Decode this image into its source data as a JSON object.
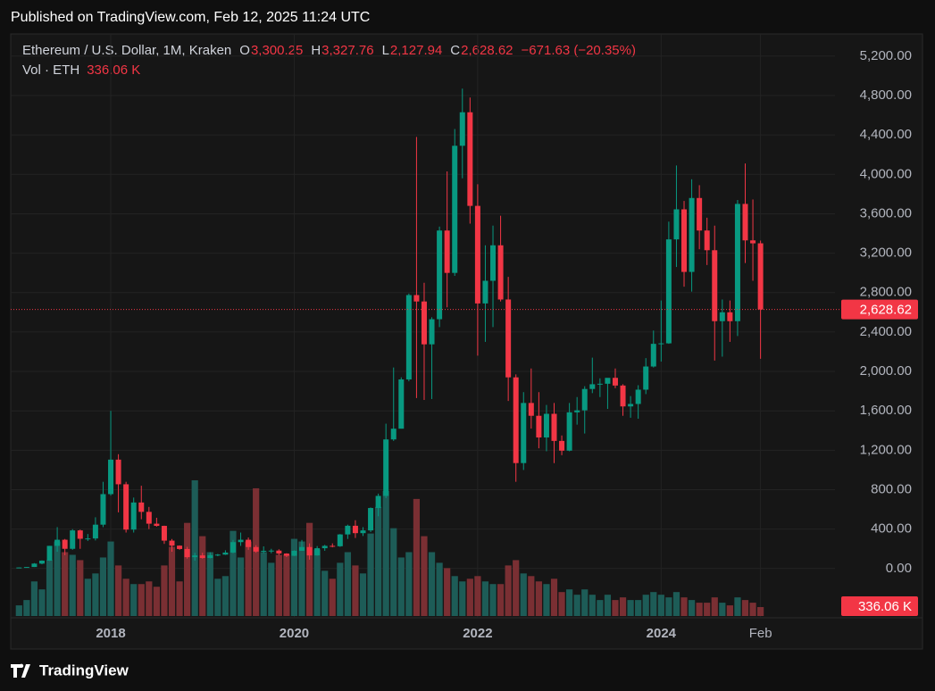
{
  "header": {
    "published": "Published on TradingView.com, Feb 12, 2025 11:24 UTC"
  },
  "footer": {
    "brand": "TradingView"
  },
  "chart_data": {
    "type": "candlestick",
    "legend": {
      "symbol": "Ethereum / U.S. Dollar, 1M, Kraken",
      "o_key": "O",
      "open": "3,300.25",
      "h_key": "H",
      "high": "3,327.76",
      "l_key": "L",
      "low": "2,127.94",
      "c_key": "C",
      "close": "2,628.62",
      "change": "−671.63 (−20.35%)",
      "volume_name": "Vol · ETH",
      "volume": "336.06 K"
    },
    "up_color": "#089981",
    "down_color": "#f23645",
    "volume_up_color": "#1d5c57",
    "volume_down_color": "#7a2f33",
    "ylim": [
      -500,
      5425
    ],
    "yticks": [
      {
        "value": 0,
        "label": "0.00"
      },
      {
        "value": 400,
        "label": "400.00"
      },
      {
        "value": 800,
        "label": "800.00"
      },
      {
        "value": 1200,
        "label": "1,200.00"
      },
      {
        "value": 1600,
        "label": "1,600.00"
      },
      {
        "value": 2000,
        "label": "2,000.00"
      },
      {
        "value": 2400,
        "label": "2,400.00"
      },
      {
        "value": 2800,
        "label": "2,800.00"
      },
      {
        "value": 3200,
        "label": "3,200.00"
      },
      {
        "value": 3600,
        "label": "3,600.00"
      },
      {
        "value": 4000,
        "label": "4,000.00"
      },
      {
        "value": 4400,
        "label": "4,400.00"
      },
      {
        "value": 4800,
        "label": "4,800.00"
      },
      {
        "value": 5200,
        "label": "5,200.00"
      }
    ],
    "xticks": [
      {
        "value": "2018-01",
        "label": "2018"
      },
      {
        "value": "2020-01",
        "label": "2020"
      },
      {
        "value": "2022-01",
        "label": "2022"
      },
      {
        "value": "2024-01",
        "label": "2024"
      },
      {
        "value": "2025-02",
        "label": "Feb"
      }
    ],
    "grid": true,
    "x": [
      "2017-01",
      "2017-02",
      "2017-03",
      "2017-04",
      "2017-05",
      "2017-06",
      "2017-07",
      "2017-08",
      "2017-09",
      "2017-10",
      "2017-11",
      "2017-12",
      "2018-01",
      "2018-02",
      "2018-03",
      "2018-04",
      "2018-05",
      "2018-06",
      "2018-07",
      "2018-08",
      "2018-09",
      "2018-10",
      "2018-11",
      "2018-12",
      "2019-01",
      "2019-02",
      "2019-03",
      "2019-04",
      "2019-05",
      "2019-06",
      "2019-07",
      "2019-08",
      "2019-09",
      "2019-10",
      "2019-11",
      "2019-12",
      "2020-01",
      "2020-02",
      "2020-03",
      "2020-04",
      "2020-05",
      "2020-06",
      "2020-07",
      "2020-08",
      "2020-09",
      "2020-10",
      "2020-11",
      "2020-12",
      "2021-01",
      "2021-02",
      "2021-03",
      "2021-04",
      "2021-05",
      "2021-06",
      "2021-07",
      "2021-08",
      "2021-09",
      "2021-10",
      "2021-11",
      "2021-12",
      "2022-01",
      "2022-02",
      "2022-03",
      "2022-04",
      "2022-05",
      "2022-06",
      "2022-07",
      "2022-08",
      "2022-09",
      "2022-10",
      "2022-11",
      "2022-12",
      "2023-01",
      "2023-02",
      "2023-03",
      "2023-04",
      "2023-05",
      "2023-06",
      "2023-07",
      "2023-08",
      "2023-09",
      "2023-10",
      "2023-11",
      "2023-12",
      "2024-01",
      "2024-02",
      "2024-03",
      "2024-04",
      "2024-05",
      "2024-06",
      "2024-07",
      "2024-08",
      "2024-09",
      "2024-10",
      "2024-11",
      "2024-12",
      "2025-01",
      "2025-02"
    ],
    "open": [
      8,
      10.7,
      15.6,
      50,
      80,
      230,
      292,
      200,
      387,
      302,
      305,
      445,
      755,
      1105,
      855,
      395,
      670,
      575,
      455,
      433,
      283,
      232,
      198,
      115,
      133,
      107,
      136,
      141,
      162,
      268,
      292,
      218,
      172,
      180,
      182,
      152,
      129,
      180,
      218,
      133,
      206,
      230,
      226,
      346,
      434,
      359,
      387,
      614,
      737,
      1310,
      1419,
      1919,
      2775,
      2710,
      2275,
      2530,
      3430,
      3000,
      4290,
      4630,
      3680,
      2690,
      2920,
      3280,
      2730,
      1940,
      1070,
      1680,
      1550,
      1330,
      1570,
      1295,
      1196,
      1585,
      1605,
      1822,
      1870,
      1875,
      1935,
      1857,
      1645,
      1670,
      1815,
      2050,
      2280,
      2285,
      3340,
      3645,
      3010,
      3760,
      3430,
      3230,
      2510,
      2600,
      2510,
      3700,
      3330,
      3300.25
    ],
    "high": [
      11.5,
      16.5,
      55,
      83,
      230,
      420,
      300,
      400,
      395,
      350,
      520,
      880,
      1600,
      1160,
      880,
      720,
      840,
      625,
      515,
      435,
      300,
      235,
      220,
      160,
      160,
      165,
      148,
      185,
      290,
      365,
      315,
      237,
      225,
      200,
      195,
      155,
      185,
      290,
      255,
      228,
      240,
      255,
      350,
      445,
      490,
      420,
      620,
      760,
      1470,
      2040,
      1940,
      2790,
      4380,
      2900,
      2550,
      3470,
      4030,
      4460,
      4870,
      4780,
      3900,
      3280,
      3480,
      3580,
      2960,
      1970,
      1790,
      2030,
      1790,
      1660,
      1680,
      1350,
      1680,
      1740,
      1850,
      2140,
      1930,
      1930,
      2030,
      1870,
      1750,
      1860,
      2135,
      2415,
      2720,
      3520,
      4090,
      3730,
      3950,
      3890,
      3560,
      3480,
      2730,
      2720,
      3740,
      4110,
      3745,
      3327.76
    ],
    "low": [
      7.9,
      10.3,
      15.3,
      43,
      77,
      170,
      135,
      190,
      200,
      280,
      285,
      420,
      740,
      570,
      365,
      365,
      500,
      400,
      425,
      250,
      170,
      190,
      100,
      80,
      100,
      102,
      125,
      138,
      155,
      230,
      190,
      160,
      155,
      155,
      135,
      116,
      127,
      180,
      90,
      130,
      180,
      215,
      220,
      300,
      310,
      330,
      370,
      530,
      715,
      1295,
      1420,
      1900,
      1730,
      1710,
      1720,
      2450,
      2650,
      2970,
      3960,
      3500,
      2160,
      2300,
      2450,
      2710,
      1700,
      880,
      1000,
      1420,
      1220,
      1190,
      1070,
      1150,
      1190,
      1460,
      1370,
      1780,
      1740,
      1620,
      1830,
      1550,
      1530,
      1520,
      1770,
      2040,
      2100,
      2280,
      3060,
      2860,
      2810,
      3240,
      3080,
      2110,
      2150,
      2300,
      2360,
      3100,
      2920,
      2127.94
    ],
    "close": [
      10.7,
      15.6,
      50,
      80,
      230,
      292,
      200,
      387,
      302,
      305,
      445,
      755,
      1105,
      855,
      395,
      670,
      575,
      455,
      433,
      283,
      232,
      198,
      115,
      133,
      107,
      136,
      141,
      162,
      268,
      292,
      218,
      172,
      180,
      182,
      152,
      129,
      180,
      218,
      133,
      206,
      230,
      226,
      346,
      434,
      359,
      387,
      614,
      737,
      1310,
      1419,
      1919,
      2775,
      2710,
      2275,
      2530,
      3430,
      3000,
      4290,
      4630,
      3680,
      2690,
      2920,
      3280,
      2730,
      1940,
      1070,
      1680,
      1550,
      1330,
      1570,
      1295,
      1196,
      1585,
      1605,
      1822,
      1870,
      1875,
      1935,
      1857,
      1645,
      1670,
      1815,
      2050,
      2280,
      2285,
      3340,
      3645,
      3010,
      3760,
      3430,
      3230,
      2510,
      2600,
      2510,
      3700,
      3330,
      3300,
      2628.62
    ],
    "volume": [
      400000,
      600000,
      1300000,
      1000000,
      2100000,
      2800000,
      2400000,
      2300000,
      2100000,
      1400000,
      1600000,
      2200000,
      2800000,
      1900000,
      1400000,
      1200000,
      1200000,
      1300000,
      1100000,
      1900000,
      2600000,
      1300000,
      3500000,
      5100000,
      3000000,
      2400000,
      1400000,
      1500000,
      3200000,
      2200000,
      2800000,
      4800000,
      2400000,
      2000000,
      2300000,
      2300000,
      2900000,
      2800000,
      3500000,
      2500000,
      1700000,
      1400000,
      2000000,
      2400000,
      1900000,
      1600000,
      3100000,
      4100000,
      4700000,
      3300000,
      2200000,
      2400000,
      4400000,
      3000000,
      2400000,
      2000000,
      1800000,
      1500000,
      1300000,
      1400000,
      1500000,
      1300000,
      1200000,
      1200000,
      1900000,
      2100000,
      1600000,
      1500000,
      1300000,
      1200000,
      1400000,
      900000,
      1000000,
      800000,
      1000000,
      800000,
      600000,
      800000,
      600000,
      700000,
      600000,
      600000,
      800000,
      900000,
      800000,
      700000,
      900000,
      700000,
      600000,
      500000,
      500000,
      700000,
      500000,
      400000,
      700000,
      600000,
      500000,
      336060
    ]
  }
}
